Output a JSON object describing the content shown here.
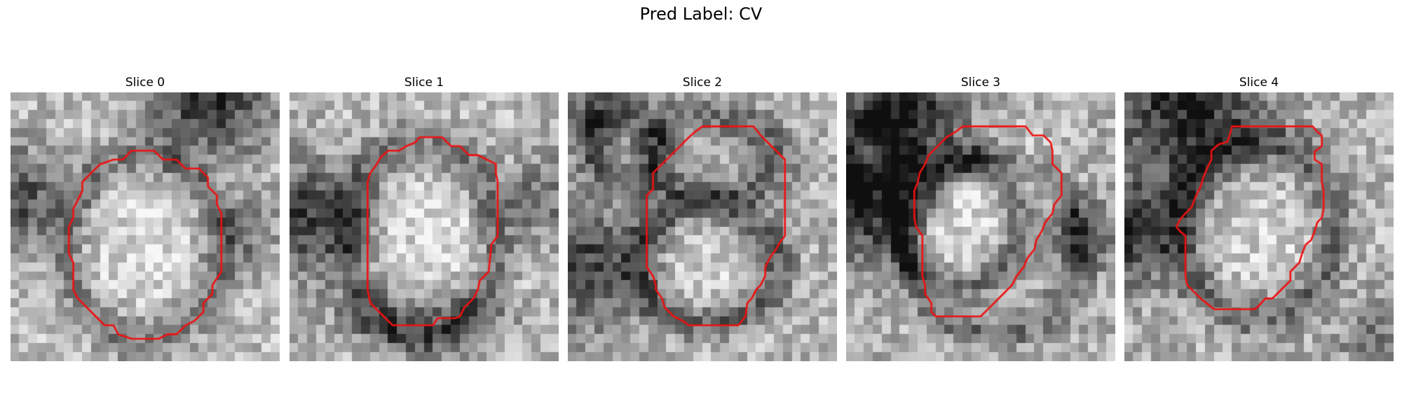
{
  "figure": {
    "title": "Pred Label: CV"
  },
  "colors": {
    "contour": "#ee1111",
    "background": "#ffffff"
  },
  "panels": [
    {
      "title": "Slice 0",
      "grid_size": 30,
      "seed": 11,
      "base": 0.74,
      "dark_blobs": [
        {
          "cx": 22,
          "cy": 1,
          "r": 4.8,
          "depth": 0.55
        },
        {
          "cx": 1,
          "cy": 12,
          "r": 4.2,
          "depth": 0.45
        },
        {
          "cx": 26,
          "cy": 16,
          "r": 3.0,
          "depth": 0.28
        }
      ],
      "light_blobs": [
        {
          "cx": 15,
          "cy": 14,
          "r": 7.0,
          "gain": 0.12
        }
      ],
      "rings": [
        {
          "cx": 14.8,
          "cy": 17.3,
          "rx": 8.6,
          "ry": 10.2,
          "width": 1.4,
          "depth": 0.28
        }
      ],
      "contour": [
        [
          13.5,
          6.5
        ],
        [
          16,
          6.5
        ],
        [
          17,
          7.5
        ],
        [
          18.5,
          7.5
        ],
        [
          19.5,
          8.5
        ],
        [
          21,
          8.5
        ],
        [
          22,
          9.5
        ],
        [
          22,
          10.5
        ],
        [
          23,
          11.5
        ],
        [
          23,
          12.5
        ],
        [
          23.5,
          13.5
        ],
        [
          23.5,
          20
        ],
        [
          22.5,
          21.5
        ],
        [
          22.5,
          22.5
        ],
        [
          21.5,
          23.5
        ],
        [
          21.5,
          24.5
        ],
        [
          20.5,
          25.5
        ],
        [
          19.5,
          26
        ],
        [
          18.5,
          27
        ],
        [
          17.5,
          27
        ],
        [
          16.5,
          27.5
        ],
        [
          13.5,
          27.5
        ],
        [
          12,
          27
        ],
        [
          11.5,
          26
        ],
        [
          10.5,
          26
        ],
        [
          9.5,
          25
        ],
        [
          8.5,
          24
        ],
        [
          7.5,
          23
        ],
        [
          7,
          22
        ],
        [
          7,
          19
        ],
        [
          6.5,
          18
        ],
        [
          6.5,
          15
        ],
        [
          7,
          14
        ],
        [
          7,
          13
        ],
        [
          7.5,
          12
        ],
        [
          8,
          11
        ],
        [
          8,
          10
        ],
        [
          9,
          9
        ],
        [
          10,
          8
        ],
        [
          11.5,
          7.5
        ],
        [
          12.5,
          7.5
        ]
      ]
    },
    {
      "title": "Slice 1",
      "grid_size": 30,
      "seed": 23,
      "base": 0.72,
      "dark_blobs": [
        {
          "cx": 2,
          "cy": 14,
          "r": 4.8,
          "depth": 0.5
        },
        {
          "cx": 28,
          "cy": 12,
          "r": 3.5,
          "depth": 0.3
        }
      ],
      "light_blobs": [
        {
          "cx": 15,
          "cy": 15,
          "r": 7.5,
          "gain": 0.15
        }
      ],
      "rings": [
        {
          "cx": 14.8,
          "cy": 16.5,
          "rx": 8.2,
          "ry": 10.8,
          "width": 1.5,
          "depth": 0.3
        },
        {
          "cx": 15,
          "cy": 25.2,
          "rx": 4.5,
          "ry": 1.6,
          "width": 1.6,
          "depth": 0.22
        }
      ],
      "contour": [
        [
          14.5,
          5
        ],
        [
          17,
          5
        ],
        [
          18,
          6
        ],
        [
          19,
          6
        ],
        [
          20,
          7
        ],
        [
          21,
          7
        ],
        [
          22,
          7.5
        ],
        [
          23,
          8
        ],
        [
          23,
          9
        ],
        [
          23.2,
          10
        ],
        [
          23.2,
          16
        ],
        [
          22.5,
          17
        ],
        [
          22.2,
          20
        ],
        [
          21.2,
          21
        ],
        [
          21,
          22
        ],
        [
          20.5,
          23
        ],
        [
          19.5,
          24
        ],
        [
          19,
          25
        ],
        [
          18.5,
          25.2
        ],
        [
          16.5,
          25.2
        ],
        [
          16,
          26
        ],
        [
          11.5,
          26
        ],
        [
          11,
          25.5
        ],
        [
          10.5,
          25
        ],
        [
          10,
          24.5
        ],
        [
          9.5,
          24
        ],
        [
          9,
          23.5
        ],
        [
          8.7,
          22
        ],
        [
          8.7,
          10
        ],
        [
          9,
          9
        ],
        [
          9.6,
          8.2
        ],
        [
          10.2,
          7.2
        ],
        [
          11,
          6.5
        ],
        [
          12.2,
          6.5
        ],
        [
          13,
          6
        ],
        [
          14,
          5.6
        ]
      ]
    },
    {
      "title": "Slice 2",
      "grid_size": 30,
      "seed": 37,
      "base": 0.7,
      "dark_blobs": [
        {
          "cx": 1.5,
          "cy": 19,
          "r": 5.0,
          "depth": 0.45
        },
        {
          "cx": 3,
          "cy": 3,
          "r": 3.0,
          "depth": 0.3
        }
      ],
      "light_blobs": [
        {
          "cx": 6,
          "cy": 6,
          "r": 3.5,
          "gain": 0.12
        },
        {
          "cx": 14,
          "cy": 19,
          "r": 5.5,
          "gain": 0.12
        }
      ],
      "rings": [
        {
          "cx": 6.5,
          "cy": 6,
          "rx": 3.8,
          "ry": 4.0,
          "width": 1.4,
          "depth": 0.3
        },
        {
          "cx": 15.5,
          "cy": 19.2,
          "rx": 7.6,
          "ry": 6.6,
          "width": 1.4,
          "depth": 0.35
        },
        {
          "cx": 16,
          "cy": 7.2,
          "rx": 6.8,
          "ry": 4.5,
          "width": 1.4,
          "depth": 0.28
        }
      ],
      "contour": [
        [
          15,
          3.8
        ],
        [
          20.7,
          3.8
        ],
        [
          21.5,
          4.8
        ],
        [
          22.5,
          5.8
        ],
        [
          23.5,
          6.8
        ],
        [
          24.2,
          7.5
        ],
        [
          24.2,
          16
        ],
        [
          23.6,
          16.8
        ],
        [
          23.2,
          17.5
        ],
        [
          22.5,
          18.5
        ],
        [
          22,
          19.5
        ],
        [
          22,
          20.5
        ],
        [
          21.5,
          21.5
        ],
        [
          21,
          22
        ],
        [
          20.5,
          23
        ],
        [
          20,
          23.5
        ],
        [
          19.8,
          25
        ],
        [
          19,
          26
        ],
        [
          17,
          26
        ],
        [
          16.5,
          26
        ],
        [
          13.5,
          26
        ],
        [
          12.8,
          25.5
        ],
        [
          11.8,
          25
        ],
        [
          10.8,
          24
        ],
        [
          10.5,
          23
        ],
        [
          9.8,
          22
        ],
        [
          9.8,
          21.5
        ],
        [
          9.5,
          20.5
        ],
        [
          8.8,
          19.5
        ],
        [
          8.8,
          11.5
        ],
        [
          9.5,
          10.8
        ],
        [
          9.5,
          9
        ],
        [
          10.5,
          8
        ],
        [
          11.5,
          7
        ],
        [
          12.5,
          6
        ],
        [
          13.5,
          5
        ],
        [
          14.2,
          4.4
        ]
      ]
    },
    {
      "title": "Slice 3",
      "grid_size": 30,
      "seed": 51,
      "base": 0.68,
      "dark_blobs": [
        {
          "cx": 6,
          "cy": 2,
          "r": 5.0,
          "depth": 0.55
        },
        {
          "cx": 2,
          "cy": 13,
          "r": 4.5,
          "depth": 0.5
        },
        {
          "cx": 26,
          "cy": 16,
          "r": 2.8,
          "depth": 0.35
        }
      ],
      "light_blobs": [
        {
          "cx": 3,
          "cy": 6.5,
          "r": 2.5,
          "gain": 0.18
        },
        {
          "cx": 12,
          "cy": 14,
          "r": 5.5,
          "gain": 0.2
        },
        {
          "cx": 21,
          "cy": 8,
          "r": 3.2,
          "gain": 0.12
        }
      ],
      "rings": [
        {
          "cx": 3.3,
          "cy": 6.8,
          "rx": 2.8,
          "ry": 2.8,
          "width": 1.2,
          "depth": 0.3
        },
        {
          "cx": 12.5,
          "cy": 14.5,
          "rx": 6.8,
          "ry": 7.2,
          "width": 1.3,
          "depth": 0.3
        },
        {
          "cx": 16.5,
          "cy": 17.2,
          "rx": 9.6,
          "ry": 9.8,
          "width": 1.2,
          "depth": 0.25
        }
      ],
      "contour": [
        [
          13,
          3.8
        ],
        [
          20,
          3.8
        ],
        [
          20.8,
          4.8
        ],
        [
          22,
          4.8
        ],
        [
          22.8,
          5.6
        ],
        [
          23,
          6.5
        ],
        [
          23,
          8
        ],
        [
          24,
          9
        ],
        [
          24,
          11.5
        ],
        [
          23.2,
          12.5
        ],
        [
          23,
          13.5
        ],
        [
          22.2,
          14.5
        ],
        [
          21.8,
          15.5
        ],
        [
          21.2,
          16.5
        ],
        [
          21,
          17.5
        ],
        [
          20.2,
          18.5
        ],
        [
          19.8,
          19.5
        ],
        [
          19,
          20.5
        ],
        [
          18.5,
          21.5
        ],
        [
          17.5,
          22.5
        ],
        [
          16.5,
          23.5
        ],
        [
          15.5,
          24.5
        ],
        [
          15,
          25
        ],
        [
          10,
          25
        ],
        [
          9.5,
          24.5
        ],
        [
          9.5,
          23.5
        ],
        [
          8.8,
          22.5
        ],
        [
          8.8,
          21.5
        ],
        [
          8.5,
          20.5
        ],
        [
          8.5,
          16
        ],
        [
          7.8,
          15
        ],
        [
          7.6,
          14
        ],
        [
          7.6,
          11
        ],
        [
          8,
          10
        ],
        [
          8.2,
          9
        ],
        [
          8.8,
          8
        ],
        [
          9.2,
          7
        ],
        [
          10.2,
          6
        ],
        [
          11.2,
          5
        ],
        [
          12.2,
          4.4
        ]
      ]
    },
    {
      "title": "Slice 4",
      "grid_size": 30,
      "seed": 67,
      "base": 0.7,
      "dark_blobs": [
        {
          "cx": 7,
          "cy": 2.5,
          "r": 6.0,
          "depth": 0.55
        },
        {
          "cx": 1,
          "cy": 16,
          "r": 4.0,
          "depth": 0.5
        },
        {
          "cx": 28,
          "cy": 27,
          "r": 3.0,
          "depth": 0.25
        }
      ],
      "light_blobs": [
        {
          "cx": 14.5,
          "cy": 14.5,
          "r": 6.5,
          "gain": 0.15
        }
      ],
      "rings": [
        {
          "cx": 14.8,
          "cy": 15.2,
          "rx": 8.6,
          "ry": 9.8,
          "width": 1.5,
          "depth": 0.32
        }
      ],
      "contour": [
        [
          12,
          3.8
        ],
        [
          21,
          3.8
        ],
        [
          21.5,
          4.4
        ],
        [
          22,
          4.8
        ],
        [
          22,
          6
        ],
        [
          21.2,
          6.6
        ],
        [
          21.2,
          7.5
        ],
        [
          22,
          8
        ],
        [
          22,
          10
        ],
        [
          22.2,
          11
        ],
        [
          22.2,
          13
        ],
        [
          22,
          14
        ],
        [
          21.5,
          14.5
        ],
        [
          21.2,
          15.5
        ],
        [
          20.8,
          16.5
        ],
        [
          20.2,
          17
        ],
        [
          19.8,
          18
        ],
        [
          19.5,
          19
        ],
        [
          18.5,
          20
        ],
        [
          18.5,
          21
        ],
        [
          17.7,
          21.8
        ],
        [
          17,
          22.5
        ],
        [
          16.5,
          23
        ],
        [
          15.7,
          23
        ],
        [
          15,
          23.8
        ],
        [
          14.5,
          24.2
        ],
        [
          12,
          24.2
        ],
        [
          10,
          24.2
        ],
        [
          9.5,
          23.8
        ],
        [
          8.5,
          23
        ],
        [
          7.5,
          22
        ],
        [
          7,
          21.5
        ],
        [
          6.8,
          20.5
        ],
        [
          6.8,
          16
        ],
        [
          6.2,
          15.5
        ],
        [
          5.8,
          15
        ],
        [
          6.2,
          14.2
        ],
        [
          6.8,
          13.5
        ],
        [
          7.5,
          12.8
        ],
        [
          8,
          11.5
        ],
        [
          8.5,
          10.5
        ],
        [
          8.8,
          9.5
        ],
        [
          9.2,
          8.5
        ],
        [
          9.7,
          7.5
        ],
        [
          9.7,
          6.5
        ],
        [
          10.5,
          5.8
        ],
        [
          11.5,
          5.5
        ],
        [
          11.8,
          4.5
        ]
      ]
    }
  ]
}
